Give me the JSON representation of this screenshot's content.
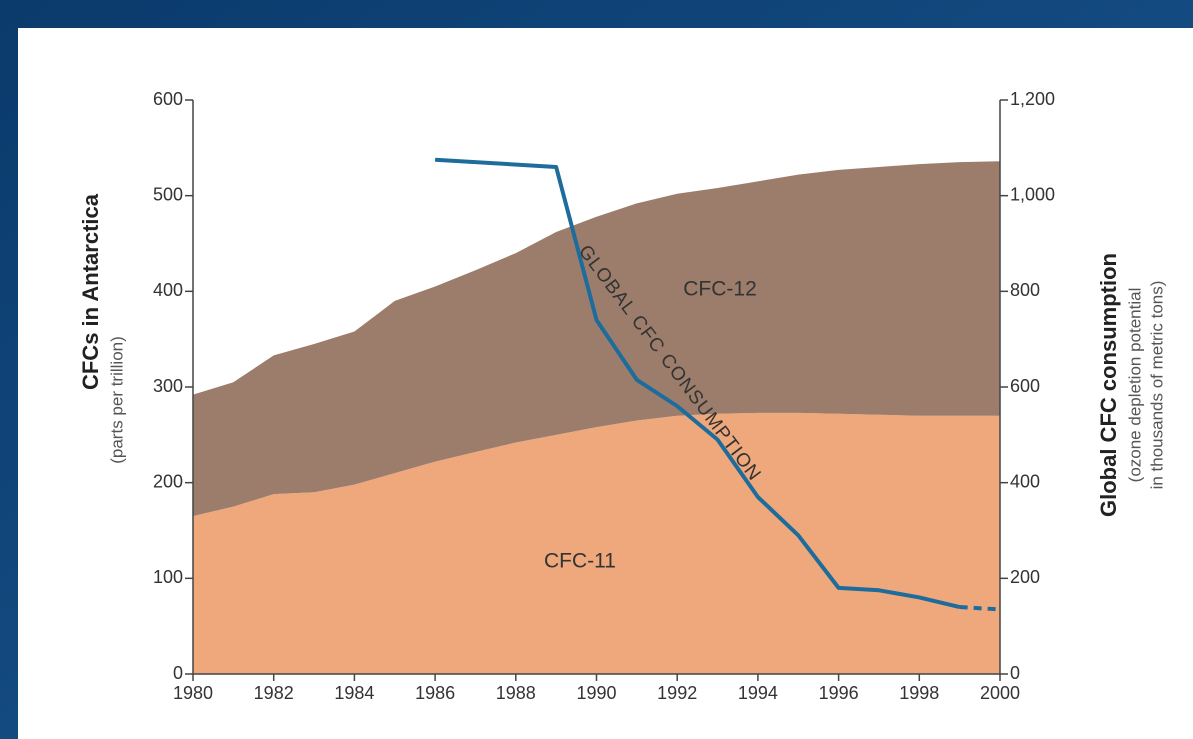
{
  "chart_data": {
    "type": "stacked-area-line",
    "xlim": [
      1980,
      2000
    ],
    "xticks": [
      1980,
      1982,
      1984,
      1986,
      1988,
      1990,
      1992,
      1994,
      1996,
      1998,
      2000
    ],
    "ylim": [
      0,
      600
    ],
    "yticks": [
      0,
      100,
      200,
      300,
      400,
      500,
      600
    ],
    "y2lim": [
      0,
      1200
    ],
    "y2ticks": [
      0,
      200,
      400,
      600,
      800,
      {
        "value": 1000,
        "label": "1,000"
      },
      {
        "value": 1200,
        "label": "1,200"
      }
    ],
    "ylabel": "CFCs in Antarctica",
    "ylabel_sub": "(parts per trillion)",
    "y2label": "Global CFC consumption",
    "y2label_sub": [
      "(ozone depletion potential",
      "in thousands of metric tons)"
    ],
    "x": [
      1980,
      1981,
      1982,
      1983,
      1984,
      1985,
      1986,
      1987,
      1988,
      1989,
      1990,
      1991,
      1992,
      1993,
      1994,
      1995,
      1996,
      1997,
      1998,
      1999,
      2000
    ],
    "series": [
      {
        "name": "CFC-11",
        "color": "#eea87c",
        "values": [
          165,
          175,
          188,
          190,
          198,
          210,
          222,
          232,
          242,
          250,
          258,
          265,
          270,
          272,
          273,
          273,
          272,
          271,
          270,
          270,
          270
        ]
      },
      {
        "name": "CFC-12",
        "color": "#9c7d6b",
        "values": [
          127,
          130,
          145,
          155,
          160,
          180,
          183,
          190,
          198,
          212,
          220,
          227,
          232,
          236,
          242,
          249,
          255,
          259,
          263,
          265,
          266
        ]
      }
    ],
    "line": {
      "name": "GLOBAL CFC CONSUMPTION",
      "color": "#1d6c9c",
      "axis": "y2",
      "x": [
        1986,
        1989,
        1990,
        1991,
        1992,
        1993,
        1994,
        1995,
        1996,
        1997,
        1998,
        1999,
        2000
      ],
      "values": [
        1075,
        1060,
        740,
        615,
        560,
        490,
        370,
        290,
        180,
        175,
        160,
        140,
        135
      ],
      "dashed_last_segment": true
    }
  }
}
